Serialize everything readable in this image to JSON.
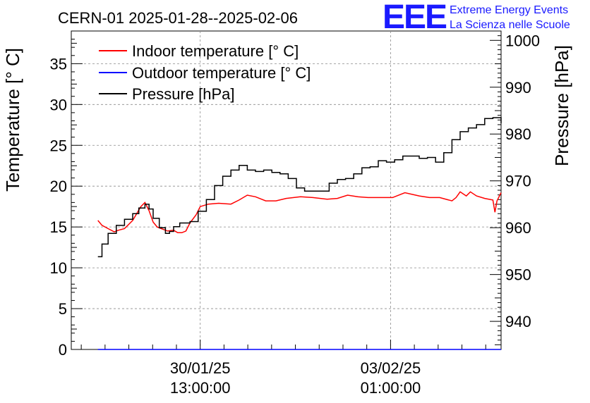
{
  "chart_data": {
    "type": "line",
    "title": "CERN-01 2025-01-28--2025-02-06",
    "ylabel": "Temperature [° C]",
    "y2label": "Pressure [hPa]",
    "ylim": [
      0,
      39
    ],
    "y2lim": [
      934,
      1002
    ],
    "yticks": [
      0,
      5,
      10,
      15,
      20,
      25,
      30,
      35
    ],
    "y2ticks": [
      940,
      950,
      960,
      970,
      980,
      990,
      1000
    ],
    "xlim": [
      0,
      210
    ],
    "xticks": [
      {
        "x": 63,
        "label1": "30/01/25",
        "label2": "13:00:00"
      },
      {
        "x": 156,
        "label1": "03/02/25",
        "label2": "01:00:00"
      }
    ],
    "grid": true,
    "legend_position": "top-left",
    "logo": {
      "mark": "EEE",
      "line1": "Extreme Energy Events",
      "line2": "La Scienza nelle Scuole"
    },
    "series": [
      {
        "name": "Indoor temperature [° C]",
        "axis": "left",
        "color": "#ff0000",
        "x": [
          13,
          15,
          18,
          21,
          23,
          26,
          30,
          34,
          36,
          38,
          40,
          42,
          44,
          47,
          50,
          52,
          54,
          56,
          58,
          61,
          63,
          67,
          72,
          78,
          82,
          86,
          90,
          95,
          100,
          105,
          112,
          118,
          125,
          130,
          135,
          140,
          145,
          150,
          157,
          163,
          170,
          175,
          180,
          186,
          188,
          190,
          193,
          195,
          198,
          202,
          206,
          207,
          208,
          210
        ],
        "y": [
          15.8,
          15.2,
          14.8,
          14.4,
          14.6,
          14.8,
          15.8,
          17.5,
          18.0,
          17.0,
          15.6,
          15.0,
          14.8,
          14.5,
          14.6,
          14.3,
          14.3,
          14.5,
          15.5,
          16.5,
          17.5,
          17.8,
          17.9,
          17.8,
          18.3,
          18.9,
          18.7,
          18.2,
          18.2,
          18.5,
          18.7,
          18.6,
          18.4,
          18.5,
          18.9,
          18.7,
          18.6,
          18.6,
          18.6,
          19.2,
          18.8,
          18.6,
          18.6,
          18.2,
          18.6,
          19.3,
          18.8,
          19.3,
          18.8,
          18.5,
          18.3,
          16.8,
          18.2,
          19.2
        ]
      },
      {
        "name": "Outdoor temperature [° C]",
        "axis": "left",
        "color": "#0000ff",
        "x": [
          13,
          210
        ],
        "y": [
          0,
          0
        ]
      },
      {
        "name": "Pressure [hPa]",
        "axis": "right",
        "color": "#000000",
        "x": [
          13,
          15,
          18,
          22,
          26,
          30,
          33,
          36,
          38,
          40,
          43,
          46,
          48,
          50,
          53,
          56,
          58,
          62,
          66,
          70,
          74,
          78,
          82,
          86,
          90,
          94,
          98,
          102,
          106,
          110,
          114,
          118,
          122,
          126,
          130,
          134,
          138,
          142,
          146,
          150,
          154,
          158,
          162,
          166,
          170,
          174,
          178,
          182,
          186,
          190,
          194,
          198,
          202,
          206,
          210
        ],
        "y": [
          953.8,
          956.5,
          958.8,
          960.5,
          961.8,
          963.0,
          964.2,
          965.0,
          964.0,
          962.0,
          960.0,
          958.8,
          959.2,
          960.2,
          961.0,
          961.0,
          961.3,
          963.5,
          966.0,
          969.0,
          971.0,
          972.3,
          973.3,
          972.3,
          972.0,
          972.3,
          971.8,
          971.5,
          970.5,
          968.5,
          967.8,
          967.8,
          967.8,
          969.5,
          970.3,
          970.5,
          971.5,
          972.8,
          973.0,
          974.3,
          974.0,
          974.5,
          975.3,
          975.3,
          974.8,
          975.0,
          974.0,
          976.0,
          978.8,
          980.5,
          981.3,
          982.0,
          983.3,
          983.5,
          982.3
        ]
      }
    ]
  }
}
